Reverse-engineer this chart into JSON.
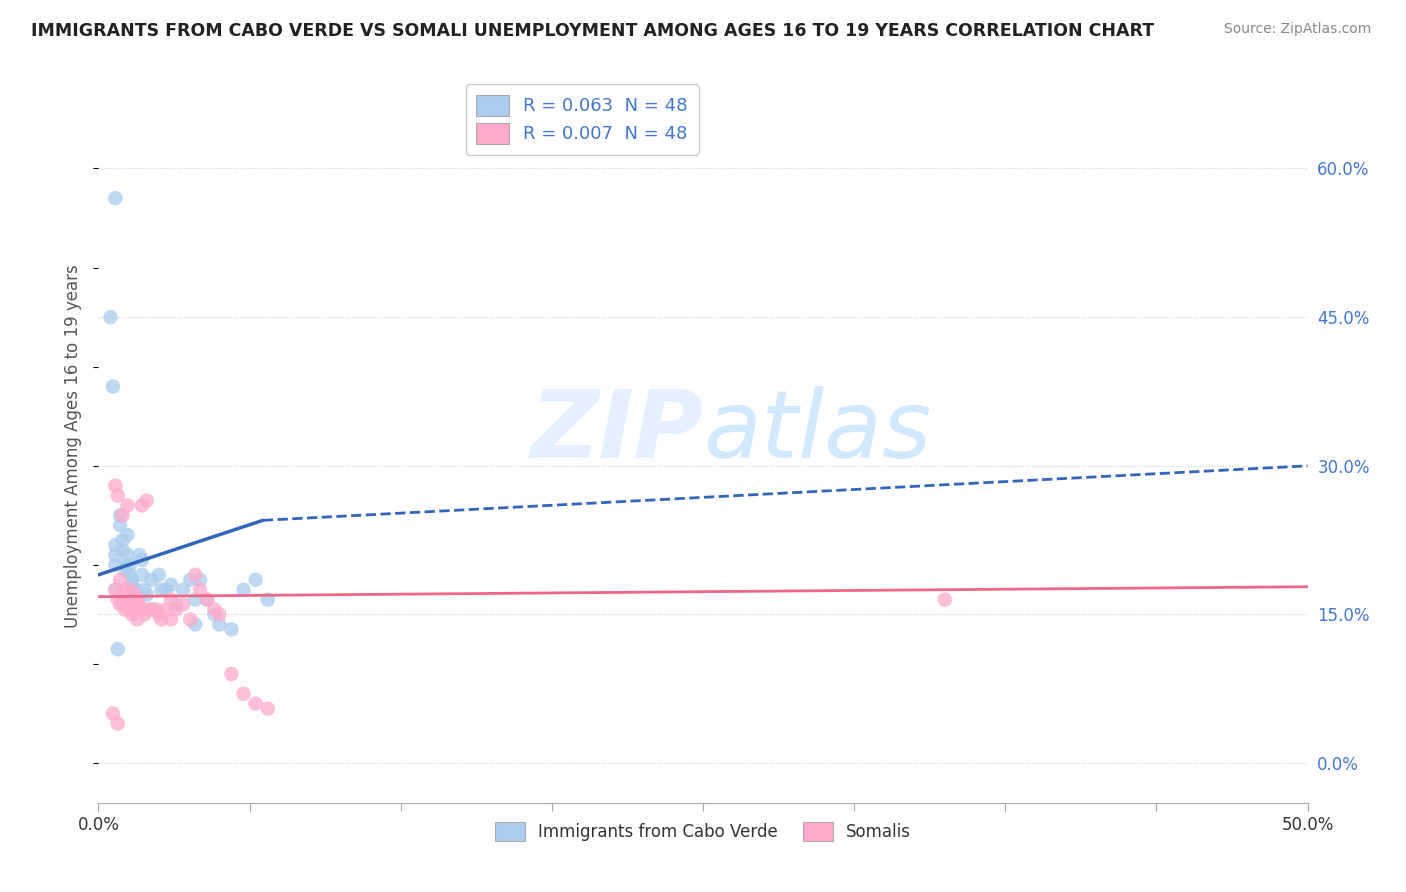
{
  "title": "IMMIGRANTS FROM CABO VERDE VS SOMALI UNEMPLOYMENT AMONG AGES 16 TO 19 YEARS CORRELATION CHART",
  "source": "Source: ZipAtlas.com",
  "ylabel": "Unemployment Among Ages 16 to 19 years",
  "xlim": [
    0.0,
    0.5
  ],
  "ylim": [
    -0.04,
    0.68
  ],
  "yticks": [
    0.0,
    0.15,
    0.3,
    0.45,
    0.6
  ],
  "yticklabels": [
    "0.0%",
    "15.0%",
    "30.0%",
    "45.0%",
    "60.0%"
  ],
  "xtick_positions": [
    0.0,
    0.0625,
    0.125,
    0.1875,
    0.25,
    0.3125,
    0.375,
    0.4375,
    0.5
  ],
  "xtick_labels": [
    "0.0%",
    "",
    "",
    "",
    "",
    "",
    "",
    "",
    "50.0%"
  ],
  "legend_label1": "R = 0.063  N = 48",
  "legend_label2": "R = 0.007  N = 48",
  "legend_bottom_label1": "Immigrants from Cabo Verde",
  "legend_bottom_label2": "Somalis",
  "color_blue": "#aaccee",
  "color_pink": "#ffaacc",
  "color_blue_line": "#3366bb",
  "color_pink_line": "#ee6688",
  "watermark_color": "#ddeeff",
  "cabo_verde_x": [
    0.007,
    0.007,
    0.007,
    0.007,
    0.007,
    0.009,
    0.009,
    0.01,
    0.01,
    0.011,
    0.011,
    0.012,
    0.012,
    0.013,
    0.013,
    0.014,
    0.014,
    0.015,
    0.015,
    0.016,
    0.016,
    0.017,
    0.018,
    0.018,
    0.019,
    0.02,
    0.022,
    0.023,
    0.025,
    0.026,
    0.028,
    0.03,
    0.032,
    0.035,
    0.038,
    0.04,
    0.04,
    0.042,
    0.045,
    0.048,
    0.05,
    0.055,
    0.06,
    0.065,
    0.07,
    0.005,
    0.006,
    0.008
  ],
  "cabo_verde_y": [
    0.57,
    0.22,
    0.21,
    0.2,
    0.175,
    0.25,
    0.24,
    0.225,
    0.215,
    0.2,
    0.195,
    0.23,
    0.21,
    0.2,
    0.19,
    0.185,
    0.18,
    0.175,
    0.17,
    0.165,
    0.16,
    0.21,
    0.205,
    0.19,
    0.175,
    0.17,
    0.185,
    0.155,
    0.19,
    0.175,
    0.175,
    0.18,
    0.16,
    0.175,
    0.185,
    0.165,
    0.14,
    0.185,
    0.165,
    0.15,
    0.14,
    0.135,
    0.175,
    0.185,
    0.165,
    0.45,
    0.38,
    0.115
  ],
  "somali_x": [
    0.007,
    0.007,
    0.008,
    0.008,
    0.009,
    0.009,
    0.01,
    0.01,
    0.011,
    0.011,
    0.012,
    0.012,
    0.013,
    0.013,
    0.014,
    0.014,
    0.015,
    0.015,
    0.016,
    0.016,
    0.017,
    0.018,
    0.018,
    0.019,
    0.02,
    0.021,
    0.022,
    0.024,
    0.025,
    0.026,
    0.028,
    0.03,
    0.03,
    0.032,
    0.035,
    0.038,
    0.04,
    0.042,
    0.045,
    0.048,
    0.05,
    0.055,
    0.06,
    0.065,
    0.07,
    0.35,
    0.006,
    0.008
  ],
  "somali_y": [
    0.28,
    0.175,
    0.27,
    0.165,
    0.185,
    0.16,
    0.25,
    0.17,
    0.175,
    0.155,
    0.26,
    0.165,
    0.175,
    0.155,
    0.165,
    0.15,
    0.17,
    0.155,
    0.165,
    0.145,
    0.16,
    0.26,
    0.155,
    0.15,
    0.265,
    0.155,
    0.155,
    0.155,
    0.15,
    0.145,
    0.155,
    0.165,
    0.145,
    0.155,
    0.16,
    0.145,
    0.19,
    0.175,
    0.165,
    0.155,
    0.15,
    0.09,
    0.07,
    0.06,
    0.055,
    0.165,
    0.05,
    0.04
  ],
  "cv_line_x0": 0.0,
  "cv_line_x_solid": 0.068,
  "cv_line_x_end": 0.5,
  "cv_line_y0": 0.19,
  "cv_line_y_solid_end": 0.245,
  "cv_line_y_end": 0.3,
  "sm_line_x0": 0.0,
  "sm_line_x_end": 0.5,
  "sm_line_y0": 0.168,
  "sm_line_y_end": 0.178
}
